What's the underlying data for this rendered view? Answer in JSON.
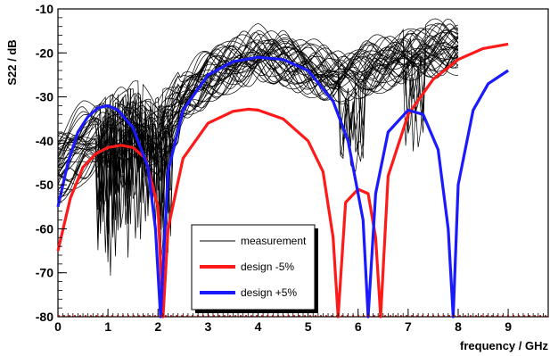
{
  "chart_data": {
    "type": "line",
    "xlabel": "frequency / GHz",
    "ylabel": "S22 / dB",
    "xlim": [
      0,
      9.8
    ],
    "ylim": [
      -80,
      -10
    ],
    "x_ticks": [
      "0",
      "1",
      "2",
      "3",
      "4",
      "5",
      "6",
      "7",
      "8",
      "9"
    ],
    "y_ticks": [
      "-10",
      "-20",
      "-30",
      "-40",
      "-50",
      "-60",
      "-70",
      "-80"
    ],
    "grid": false,
    "legend_position": "lower-center",
    "series": [
      {
        "name": "measurement",
        "color": "#000000",
        "note_count_lines": 40,
        "x": [
          0,
          0.5,
          1.0,
          1.5,
          2.0,
          2.5,
          3.0,
          3.5,
          4.0,
          4.5,
          5.0,
          5.5,
          6.0,
          6.5,
          7.0,
          7.5,
          8.0
        ],
        "y_median": [
          -45,
          -40,
          -37,
          -35,
          -38,
          -30,
          -25,
          -22,
          -20,
          -21,
          -23,
          -25,
          -24,
          -22,
          -20,
          -19,
          -18
        ]
      },
      {
        "name": "design -5%",
        "color": "#ff1a1a",
        "x": [
          0,
          0.25,
          0.5,
          0.75,
          1.0,
          1.25,
          1.5,
          1.75,
          2.0,
          2.1,
          2.2,
          2.5,
          3.0,
          3.5,
          3.8,
          4.0,
          4.5,
          5.0,
          5.3,
          5.5,
          5.6,
          5.75,
          6.0,
          6.2,
          6.35,
          6.45,
          6.6,
          7.0,
          7.5,
          8.0,
          8.5,
          9.0
        ],
        "y": [
          -65,
          -53,
          -46,
          -43,
          -41.5,
          -41,
          -41.5,
          -44,
          -55,
          -80,
          -60,
          -44,
          -36,
          -33.3,
          -32.8,
          -33,
          -35,
          -40,
          -47,
          -62,
          -80,
          -54,
          -51,
          -52,
          -62,
          -80,
          -48,
          -34,
          -26,
          -21.5,
          -19,
          -18
        ]
      },
      {
        "name": "design +5%",
        "color": "#1a1aff",
        "x": [
          0,
          0.2,
          0.4,
          0.6,
          0.8,
          1.0,
          1.2,
          1.5,
          1.8,
          1.95,
          2.05,
          2.2,
          2.5,
          3.0,
          3.5,
          4.0,
          4.5,
          5.0,
          5.5,
          5.8,
          6.1,
          6.2,
          6.35,
          6.6,
          7.0,
          7.3,
          7.6,
          7.8,
          7.9,
          8.0,
          8.3,
          8.6,
          9.0
        ],
        "y": [
          -55,
          -45,
          -38,
          -34.5,
          -32.5,
          -32,
          -33,
          -37,
          -46,
          -60,
          -80,
          -47,
          -33,
          -25,
          -22,
          -21,
          -21.5,
          -24,
          -31,
          -40,
          -58,
          -80,
          -52,
          -38,
          -33,
          -34,
          -42,
          -60,
          -80,
          -50,
          -33,
          -27,
          -24
        ]
      }
    ]
  },
  "legend": {
    "items": [
      {
        "label": "measurement",
        "color": "#000000"
      },
      {
        "label": "design -5%",
        "color": "#ff1a1a"
      },
      {
        "label": "design +5%",
        "color": "#1a1aff"
      }
    ]
  }
}
